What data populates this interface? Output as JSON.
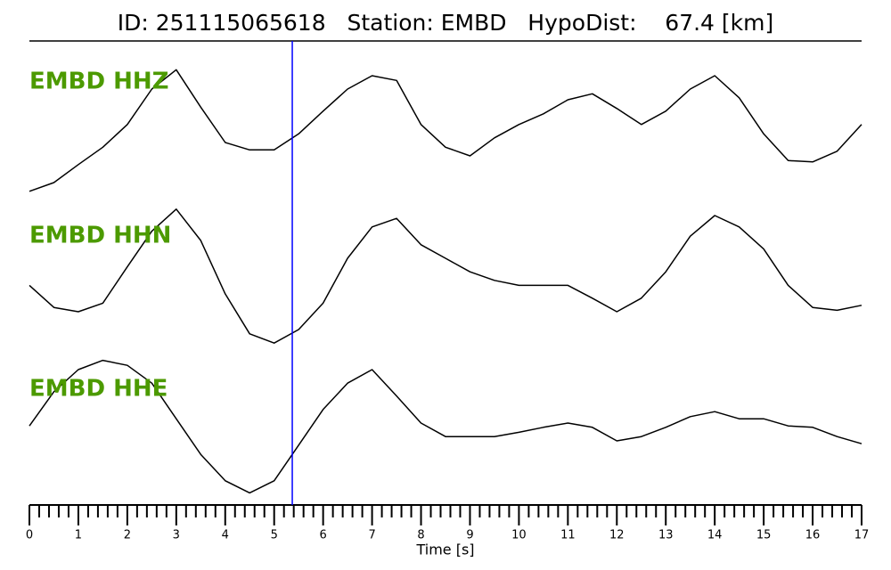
{
  "chart_data": {
    "type": "seismogram",
    "title": "ID: 251115065618   Station: EMBD   HypoDist:    67.4 [km]",
    "xlabel": "Time [s]",
    "xlim": [
      0,
      17
    ],
    "xticks": [
      0,
      1,
      2,
      3,
      4,
      5,
      6,
      7,
      8,
      9,
      10,
      11,
      12,
      13,
      14,
      15,
      16,
      17
    ],
    "xticks_minor": [
      0.2,
      0.4,
      0.6,
      0.8,
      1.2,
      1.4,
      1.6,
      1.8,
      2.2,
      2.4,
      2.6,
      2.8,
      3.2,
      3.4,
      3.6,
      3.8,
      4.2,
      4.4,
      4.6,
      4.8,
      5.2,
      5.4,
      5.6,
      5.8,
      6.2,
      6.4,
      6.6,
      6.8,
      7.2,
      7.4,
      7.6,
      7.8,
      8.2,
      8.4,
      8.6,
      8.8,
      9.2,
      9.4,
      9.6,
      9.8,
      10.2,
      10.4,
      10.6,
      10.8,
      11.2,
      11.4,
      11.6,
      11.8,
      12.2,
      12.4,
      12.6,
      12.8,
      13.2,
      13.4,
      13.6,
      13.8,
      14.2,
      14.4,
      14.6,
      14.8,
      15.2,
      15.4,
      15.6,
      15.8,
      16.2,
      16.4,
      16.6,
      16.8
    ],
    "ylim": [
      -1,
      1
    ],
    "pick_time": 5.37,
    "pick_color": "#0000ff",
    "label_color": "#4c9a00",
    "x": [
      0,
      0.5,
      1,
      1.5,
      2,
      2.5,
      3,
      3.5,
      4,
      4.5,
      5,
      5.5,
      6,
      6.5,
      7,
      7.5,
      8,
      8.5,
      9,
      9.5,
      10,
      10.5,
      11,
      11.5,
      12,
      12.5,
      13,
      13.5,
      14,
      14.5,
      15,
      15.5,
      16,
      16.5,
      17
    ],
    "series": [
      {
        "name": "EMBD HHZ",
        "color": "#000000",
        "values": [
          -0.97,
          -0.84,
          -0.57,
          -0.31,
          0.03,
          0.56,
          0.85,
          0.29,
          -0.24,
          -0.35,
          -0.35,
          -0.11,
          0.23,
          0.56,
          0.76,
          0.69,
          0.03,
          -0.31,
          -0.44,
          -0.17,
          0.03,
          0.19,
          0.4,
          0.49,
          0.27,
          0.03,
          0.23,
          0.56,
          0.76,
          0.43,
          -0.11,
          -0.51,
          -0.53,
          -0.37,
          0.03
        ]
      },
      {
        "name": "EMBD HHN",
        "color": "#000000",
        "values": [
          -0.13,
          -0.44,
          -0.5,
          -0.38,
          0.13,
          0.63,
          0.94,
          0.5,
          -0.25,
          -0.81,
          -0.94,
          -0.75,
          -0.38,
          0.25,
          0.69,
          0.81,
          0.44,
          0.25,
          0.06,
          -0.06,
          -0.13,
          -0.13,
          -0.13,
          -0.31,
          -0.5,
          -0.31,
          0.06,
          0.56,
          0.85,
          0.69,
          0.38,
          -0.13,
          -0.44,
          -0.48,
          -0.41
        ]
      },
      {
        "name": "EMBD HHE",
        "color": "#000000",
        "values": [
          -0.04,
          0.44,
          0.75,
          0.88,
          0.81,
          0.56,
          0.06,
          -0.44,
          -0.81,
          -0.98,
          -0.81,
          -0.31,
          0.19,
          0.56,
          0.75,
          0.38,
          0,
          -0.19,
          -0.19,
          -0.19,
          -0.13,
          -0.06,
          0,
          -0.06,
          -0.25,
          -0.19,
          -0.06,
          0.09,
          0.16,
          0.06,
          0.06,
          -0.04,
          -0.06,
          -0.19,
          -0.29
        ]
      }
    ]
  }
}
